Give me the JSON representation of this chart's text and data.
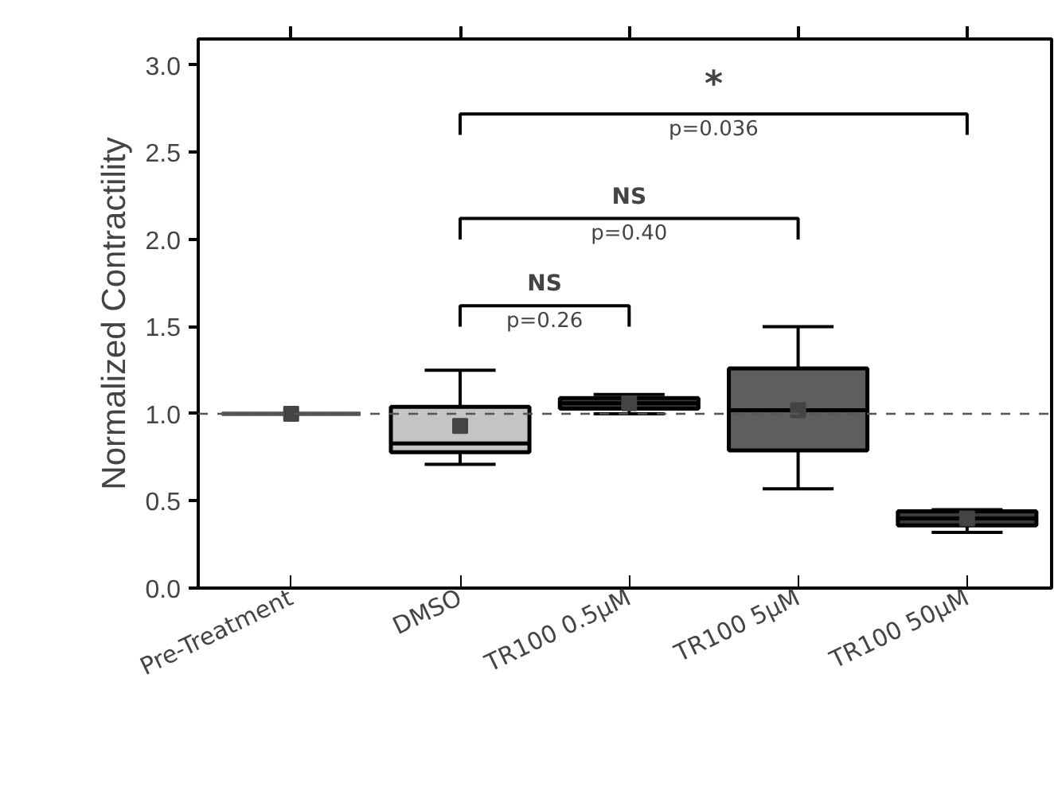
{
  "chart_data": {
    "type": "box",
    "ylabel": "Normalized Contractility",
    "categories": [
      "Pre-Treatment",
      "DMSO",
      "TR100 0.5μM",
      "TR100 5μM",
      "TR100 50μM"
    ],
    "boxes": [
      {
        "low": 1.0,
        "q1": 1.0,
        "median": 1.0,
        "q3": 1.0,
        "high": 1.0,
        "mean": 1.0
      },
      {
        "low": 0.71,
        "q1": 0.78,
        "median": 0.83,
        "q3": 1.04,
        "high": 1.25,
        "mean": 0.93
      },
      {
        "low": 1.0,
        "q1": 1.03,
        "median": 1.06,
        "q3": 1.09,
        "high": 1.11,
        "mean": 1.06
      },
      {
        "low": 0.57,
        "q1": 0.79,
        "median": 1.02,
        "q3": 1.26,
        "high": 1.5,
        "mean": 1.02
      },
      {
        "low": 0.32,
        "q1": 0.36,
        "median": 0.4,
        "q3": 0.44,
        "high": 0.45,
        "mean": 0.4
      }
    ],
    "colors": [
      "#555555",
      "#c4c4c4",
      "#3a3a3a",
      "#5e5e5e",
      "#3a3a3a"
    ],
    "ylim": [
      0,
      3.15
    ],
    "yticks": [
      {
        "value": 0,
        "label": "0.0"
      },
      {
        "value": 0.5,
        "label": "0.5"
      },
      {
        "value": 1,
        "label": "1.0"
      },
      {
        "value": 1.5,
        "label": "1.5"
      },
      {
        "value": 2,
        "label": "2.0"
      },
      {
        "value": 2.5,
        "label": "2.5"
      },
      {
        "value": 3,
        "label": "3.0"
      }
    ],
    "ref_lines": [
      {
        "axis": "y",
        "value": 1.0,
        "line_style": "dashed",
        "color": "#555555"
      }
    ],
    "annotations": [
      "*",
      "p=0.036",
      "NS",
      "p=0.40",
      "NS",
      "p=0.26"
    ]
  }
}
